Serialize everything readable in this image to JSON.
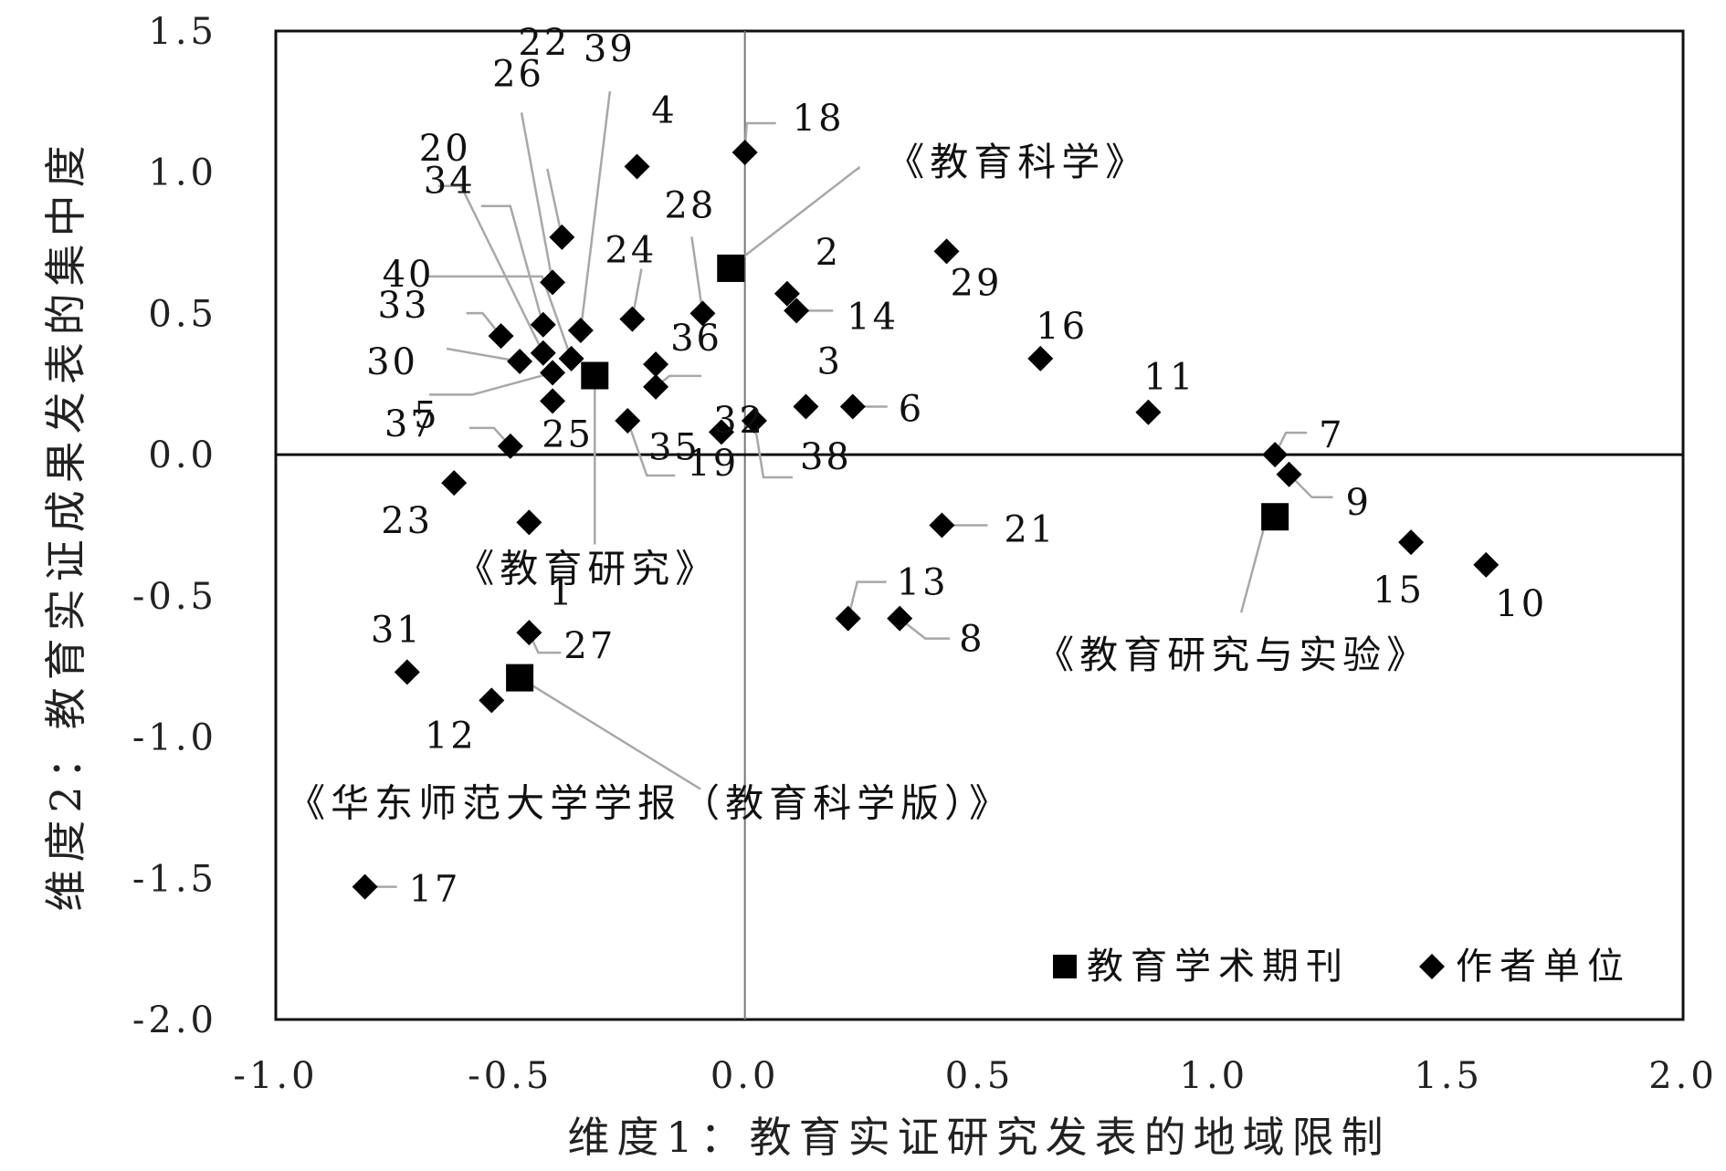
{
  "chart_data": {
    "type": "scatter",
    "xlabel": "维度1：教育实证研究发表的地域限制",
    "ylabel": "维度2：教育实证成果发表的集中度",
    "xlim": [
      -1.0,
      2.0
    ],
    "ylim": [
      -2.0,
      1.5
    ],
    "xticks": [
      -1.0,
      -0.5,
      0.0,
      0.5,
      1.0,
      1.5,
      2.0
    ],
    "yticks": [
      1.5,
      1.0,
      0.5,
      0.0,
      -0.5,
      -1.0,
      -1.5,
      -2.0
    ],
    "xtick_labels": [
      "-1.0",
      "-0.5",
      "0.0",
      "0.5",
      "1.0",
      "1.5",
      "2.0"
    ],
    "ytick_labels": [
      "1.5",
      "1.0",
      "0.5",
      "0.0",
      "-0.5",
      "-1.0",
      "-1.5",
      "-2.0"
    ],
    "grid": false,
    "reference_lines": {
      "x": 0,
      "y": 0
    },
    "legend": {
      "placement": "bottom-right",
      "items": [
        {
          "label": "教育学术期刊",
          "marker": "square"
        },
        {
          "label": "作者单位",
          "marker": "diamond"
        }
      ]
    },
    "series": [
      {
        "name": "教育学术期刊",
        "marker": "square",
        "points": [
          {
            "label": "《教育科学》",
            "x": -0.03,
            "y": 0.66
          },
          {
            "label": "《教育研究》",
            "x": -0.32,
            "y": 0.28
          },
          {
            "label": "《教育研究与实验》",
            "x": 1.13,
            "y": -0.22
          },
          {
            "label": "《华东师范大学学报（教育科学版）》",
            "x": -0.48,
            "y": -0.79
          }
        ]
      },
      {
        "name": "作者单位",
        "marker": "diamond",
        "points": [
          {
            "label": "1",
            "x": -0.46,
            "y": -0.24
          },
          {
            "label": "2",
            "x": 0.09,
            "y": 0.57
          },
          {
            "label": "3",
            "x": 0.13,
            "y": 0.17
          },
          {
            "label": "4",
            "x": -0.23,
            "y": 1.02
          },
          {
            "label": "5",
            "x": -0.41,
            "y": 0.29
          },
          {
            "label": "6",
            "x": 0.23,
            "y": 0.17
          },
          {
            "label": "7",
            "x": 1.13,
            "y": 0.0
          },
          {
            "label": "8",
            "x": 0.33,
            "y": -0.58
          },
          {
            "label": "9",
            "x": 1.16,
            "y": -0.07
          },
          {
            "label": "10",
            "x": 1.58,
            "y": -0.39
          },
          {
            "label": "11",
            "x": 0.86,
            "y": 0.15
          },
          {
            "label": "12",
            "x": -0.54,
            "y": -0.87
          },
          {
            "label": "13",
            "x": 0.22,
            "y": -0.58
          },
          {
            "label": "14",
            "x": 0.11,
            "y": 0.51
          },
          {
            "label": "15",
            "x": 1.42,
            "y": -0.31
          },
          {
            "label": "16",
            "x": 0.63,
            "y": 0.34
          },
          {
            "label": "17",
            "x": -0.81,
            "y": -1.53
          },
          {
            "label": "18",
            "x": 0.0,
            "y": 1.07
          },
          {
            "label": "19",
            "x": -0.25,
            "y": 0.12
          },
          {
            "label": "20",
            "x": -0.43,
            "y": 0.46
          },
          {
            "label": "21",
            "x": 0.42,
            "y": -0.25
          },
          {
            "label": "22",
            "x": -0.39,
            "y": 0.77
          },
          {
            "label": "23",
            "x": -0.62,
            "y": -0.1
          },
          {
            "label": "24",
            "x": -0.24,
            "y": 0.48
          },
          {
            "label": "25",
            "x": -0.41,
            "y": 0.19
          },
          {
            "label": "26",
            "x": -0.41,
            "y": 0.61
          },
          {
            "label": "27",
            "x": -0.46,
            "y": -0.63
          },
          {
            "label": "28",
            "x": -0.09,
            "y": 0.5
          },
          {
            "label": "29",
            "x": 0.43,
            "y": 0.72
          },
          {
            "label": "30",
            "x": -0.48,
            "y": 0.33
          },
          {
            "label": "31",
            "x": -0.72,
            "y": -0.77
          },
          {
            "label": "32",
            "x": -0.19,
            "y": 0.24
          },
          {
            "label": "33",
            "x": -0.52,
            "y": 0.42
          },
          {
            "label": "34",
            "x": -0.43,
            "y": 0.36
          },
          {
            "label": "35",
            "x": -0.05,
            "y": 0.08
          },
          {
            "label": "36",
            "x": -0.19,
            "y": 0.32
          },
          {
            "label": "37",
            "x": -0.5,
            "y": 0.03
          },
          {
            "label": "38",
            "x": 0.02,
            "y": 0.12
          },
          {
            "label": "39",
            "x": -0.35,
            "y": 0.44
          },
          {
            "label": "40",
            "x": -0.37,
            "y": 0.34
          }
        ]
      }
    ]
  }
}
